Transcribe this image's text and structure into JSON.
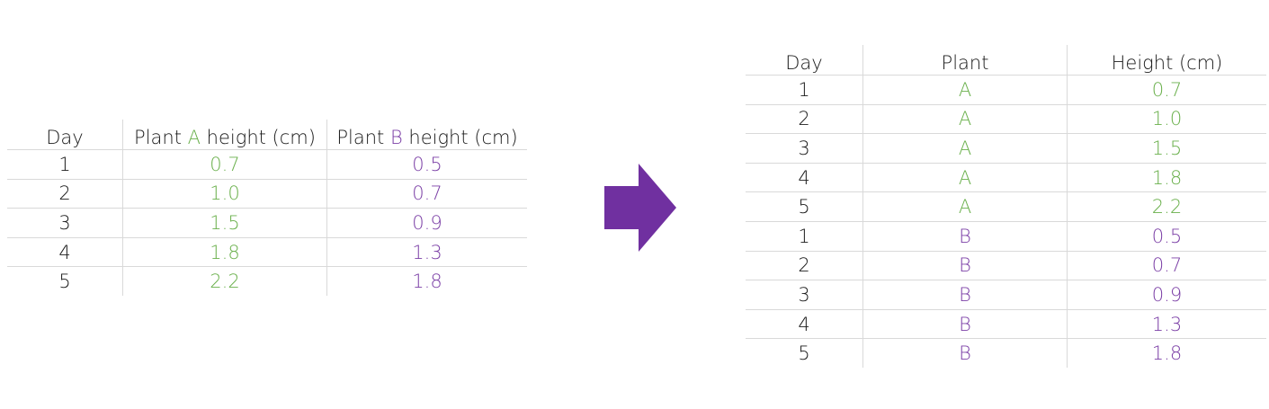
{
  "wide_table": {
    "headers": {
      "day": "Day",
      "plant_a_prefix": "Plant ",
      "plant_a_letter": "A",
      "plant_a_suffix": " height (cm)",
      "plant_b_prefix": "Plant ",
      "plant_b_letter": "B",
      "plant_b_suffix": " height (cm)"
    },
    "rows": [
      {
        "day": "1",
        "a": "0.7",
        "b": "0.5"
      },
      {
        "day": "2",
        "a": "1.0",
        "b": "0.7"
      },
      {
        "day": "3",
        "a": "1.5",
        "b": "0.9"
      },
      {
        "day": "4",
        "a": "1.8",
        "b": "1.3"
      },
      {
        "day": "5",
        "a": "2.2",
        "b": "1.8"
      }
    ]
  },
  "long_table": {
    "headers": {
      "day": "Day",
      "plant": "Plant",
      "height": "Height (cm)"
    },
    "rows": [
      {
        "day": "1",
        "plant": "A",
        "height": "0.7"
      },
      {
        "day": "2",
        "plant": "A",
        "height": "1.0"
      },
      {
        "day": "3",
        "plant": "A",
        "height": "1.5"
      },
      {
        "day": "4",
        "plant": "A",
        "height": "1.8"
      },
      {
        "day": "5",
        "plant": "A",
        "height": "2.2"
      },
      {
        "day": "1",
        "plant": "B",
        "height": "0.5"
      },
      {
        "day": "2",
        "plant": "B",
        "height": "0.7"
      },
      {
        "day": "3",
        "plant": "B",
        "height": "0.9"
      },
      {
        "day": "4",
        "plant": "B",
        "height": "1.3"
      },
      {
        "day": "5",
        "plant": "B",
        "height": "1.8"
      }
    ]
  },
  "colors": {
    "plant_a": "#6ab04c",
    "plant_b": "#7b3fa6",
    "arrow": "#7030a0"
  },
  "arrow_icon": "right-arrow-icon"
}
